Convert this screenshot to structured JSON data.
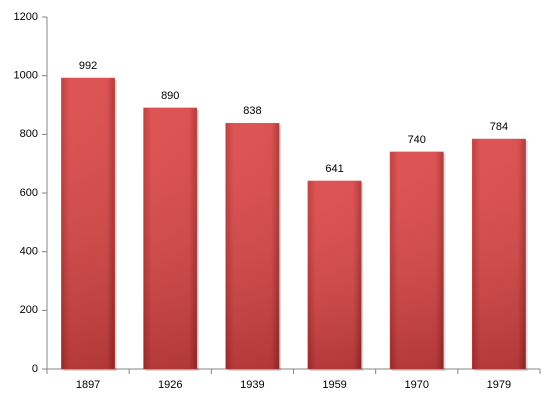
{
  "chart_data": {
    "type": "bar",
    "categories": [
      "1897",
      "1926",
      "1939",
      "1959",
      "1970",
      "1979"
    ],
    "values": [
      992,
      890,
      838,
      641,
      740,
      784
    ],
    "color": "#d94444",
    "ylim": [
      0,
      1200
    ],
    "yticks": [
      0,
      200,
      400,
      600,
      800,
      1000,
      1200
    ],
    "grid": false,
    "data_labels": true
  }
}
